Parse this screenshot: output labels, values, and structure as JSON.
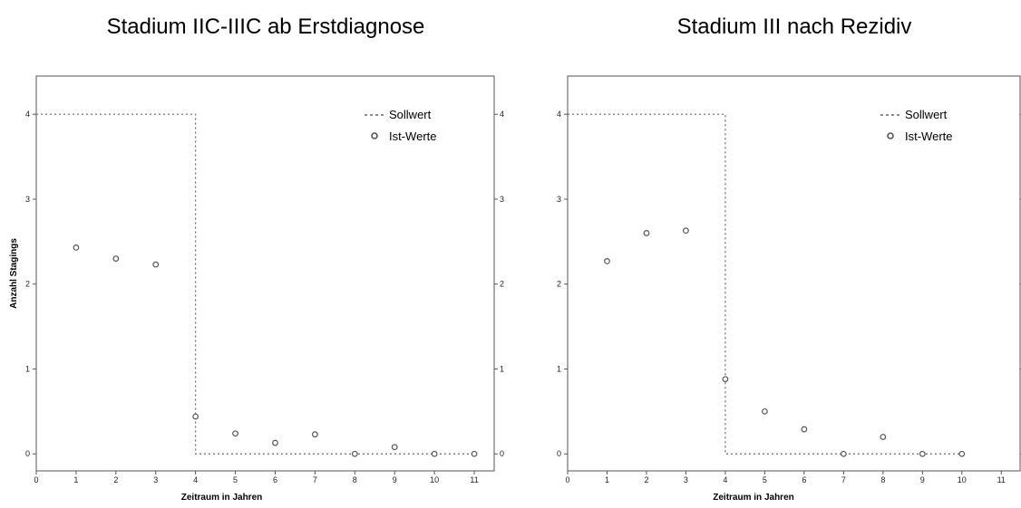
{
  "chart_data": [
    {
      "type": "scatter",
      "title": "Stadium IIC-IIIC ab Erstdiagnose",
      "xlabel": "Zeitraum in Jahren",
      "ylabel": "Anzahl Stagings",
      "xlim": [
        0,
        11.5
      ],
      "ylim": [
        -0.2,
        4.45
      ],
      "x_ticks": [
        0,
        1,
        2,
        3,
        4,
        5,
        6,
        7,
        8,
        9,
        10,
        11
      ],
      "y_ticks": [
        0,
        1,
        2,
        3,
        4
      ],
      "legend_position": "top-right",
      "series": [
        {
          "name": "Sollwert",
          "style": "dotted-step",
          "points": [
            [
              0,
              4
            ],
            [
              4,
              4
            ],
            [
              4,
              0
            ],
            [
              11,
              0
            ]
          ]
        },
        {
          "name": "Ist-Werte",
          "style": "circles",
          "points": [
            [
              1,
              2.43
            ],
            [
              2,
              2.3
            ],
            [
              3,
              2.23
            ],
            [
              4,
              0.44
            ],
            [
              5,
              0.24
            ],
            [
              6,
              0.13
            ],
            [
              7,
              0.23
            ],
            [
              8,
              0.0
            ],
            [
              9,
              0.08
            ],
            [
              10,
              0.0
            ],
            [
              11,
              0.0
            ]
          ]
        }
      ]
    },
    {
      "type": "scatter",
      "title": "Stadium III nach Rezidiv",
      "xlabel": "Zeitraum in Jahren",
      "ylabel": "",
      "xlim": [
        0,
        11.5
      ],
      "ylim": [
        -0.2,
        4.45
      ],
      "x_ticks": [
        0,
        1,
        2,
        3,
        4,
        5,
        6,
        7,
        8,
        9,
        10,
        11
      ],
      "y_ticks": [
        0,
        1,
        2,
        3,
        4
      ],
      "legend_position": "top-right",
      "series": [
        {
          "name": "Sollwert",
          "style": "dotted-step",
          "points": [
            [
              0,
              4
            ],
            [
              4,
              4
            ],
            [
              4,
              0
            ],
            [
              10,
              0
            ]
          ]
        },
        {
          "name": "Ist-Werte",
          "style": "circles",
          "points": [
            [
              1,
              2.27
            ],
            [
              2,
              2.6
            ],
            [
              3,
              2.63
            ],
            [
              4,
              0.88
            ],
            [
              5,
              0.5
            ],
            [
              6,
              0.29
            ],
            [
              7,
              0.0
            ],
            [
              8,
              0.2
            ],
            [
              9,
              0.0
            ],
            [
              10,
              0.0
            ]
          ]
        }
      ]
    }
  ]
}
